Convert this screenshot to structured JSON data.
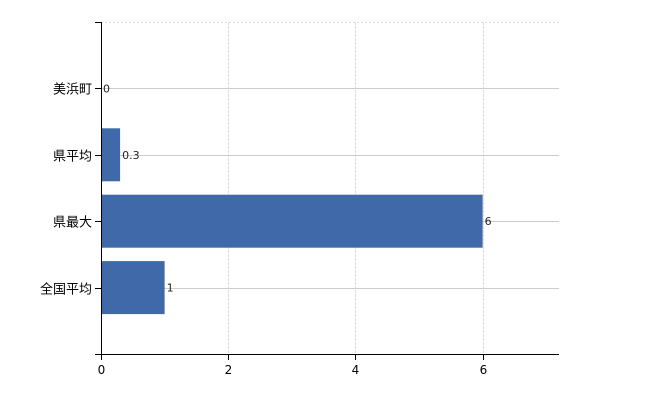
{
  "chart_data": {
    "type": "bar",
    "orientation": "horizontal",
    "categories": [
      "美浜町",
      "県平均",
      "県最大",
      "全国平均"
    ],
    "values": [
      0,
      0.3,
      6,
      1
    ],
    "data_labels": [
      "0",
      "0.3",
      "6",
      "1"
    ],
    "title": "",
    "xlabel": "",
    "ylabel": "",
    "xlim": [
      0,
      7.2
    ],
    "x_ticks": [
      0,
      2,
      4,
      6
    ],
    "x_tick_labels": [
      "0",
      "2",
      "4",
      "6"
    ],
    "grid": true,
    "bar_color": "#3f69a9",
    "legend": "none"
  }
}
